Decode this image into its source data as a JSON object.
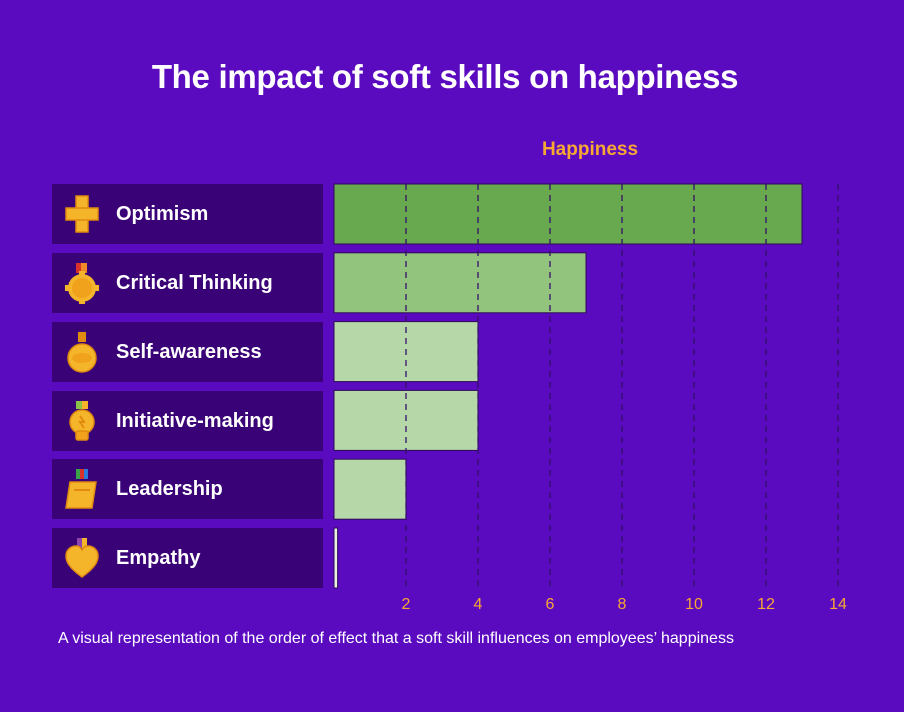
{
  "chart_data": {
    "type": "bar",
    "orientation": "horizontal",
    "title": "The impact of soft skills on happiness",
    "series_label": "Happiness",
    "caption": "A visual representation of the order of effect that a soft skill influences on employees’ happiness",
    "categories": [
      "Optimism",
      "Critical Thinking",
      "Self-awareness",
      "Initiative-making",
      "Leadership",
      "Empathy"
    ],
    "icons": [
      "plus-medal-icon",
      "gear-medal-icon",
      "round-medal-icon",
      "lightbulb-medal-icon",
      "flag-medal-icon",
      "heart-medal-icon"
    ],
    "values": [
      13,
      7,
      4,
      4,
      2,
      0.1
    ],
    "bar_colors": [
      "#68a94f",
      "#93c47d",
      "#b6d7a8",
      "#b6d7a8",
      "#b6d7a8",
      "#e9f2e3"
    ],
    "xlim": [
      0,
      14
    ],
    "xticks": [
      2,
      4,
      6,
      8,
      10,
      12,
      14
    ],
    "grid": "vertical dashed",
    "colors": {
      "background": "#5b0bbf",
      "label_panel": "#390276",
      "accent": "#f7a833",
      "gridline": "#35106b"
    }
  }
}
